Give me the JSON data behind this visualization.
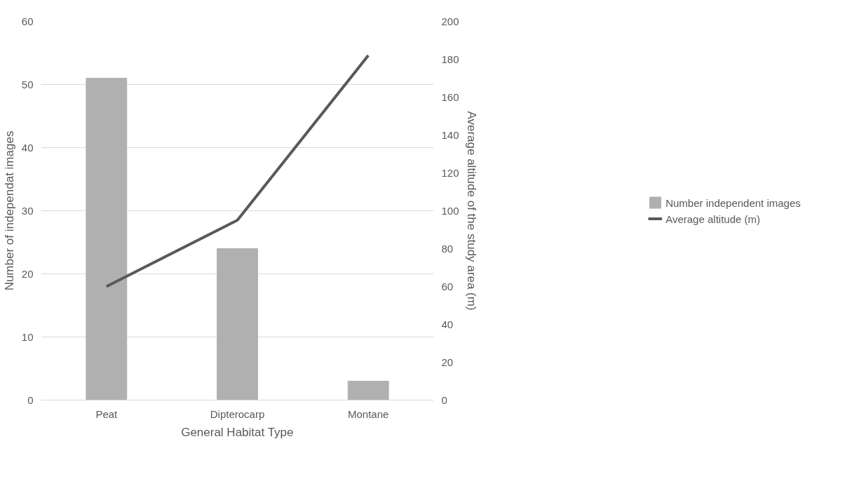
{
  "chart_data": {
    "type": "bar",
    "xlabel": "General Habitat Type",
    "ylabel": "Number of independat images",
    "y2label": "Average altitude of the study area (m)",
    "categories": [
      "Peat",
      "Dipterocarp",
      "Montane"
    ],
    "series": [
      {
        "name": "Number independent images",
        "color": "#b0b0b0",
        "values": [
          51,
          24,
          3
        ]
      },
      {
        "name": "Average altitude (m)",
        "type": "line",
        "axis": "y2",
        "color": "#595959",
        "values": [
          60,
          95,
          182
        ]
      }
    ],
    "ylim": [
      0,
      60
    ],
    "yticks": [
      0,
      10,
      20,
      30,
      40,
      50,
      60
    ],
    "y2lim": [
      0,
      200
    ],
    "y2ticks": [
      0,
      20,
      40,
      60,
      80,
      100,
      120,
      140,
      160,
      180,
      200
    ],
    "grid": "y",
    "legend": "right",
    "marker": "none",
    "line_style": "solid"
  }
}
